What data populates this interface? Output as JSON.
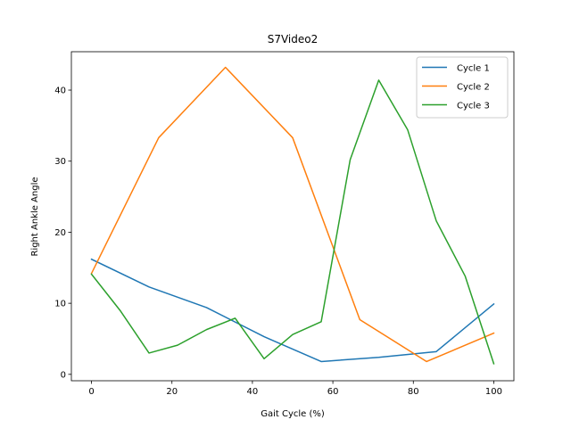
{
  "chart_data": {
    "type": "line",
    "title": "S7Video2",
    "xlabel": "Gait Cycle (%)",
    "ylabel": "Right Ankle Angle",
    "xlim": [
      -5,
      105
    ],
    "ylim": [
      -0.9,
      45.4
    ],
    "xticks": [
      0,
      20,
      40,
      60,
      80,
      100
    ],
    "yticks": [
      0,
      10,
      20,
      30,
      40
    ],
    "grid": false,
    "legend_position": "top-right",
    "series": [
      {
        "name": "Cycle 1",
        "color": "#1f77b4",
        "x": [
          0,
          14.3,
          28.6,
          42.9,
          57.1,
          71.4,
          85.7,
          100
        ],
        "y": [
          16.2,
          12.3,
          9.4,
          5.3,
          1.8,
          2.4,
          3.2,
          9.9
        ]
      },
      {
        "name": "Cycle 2",
        "color": "#ff7f0e",
        "x": [
          0,
          16.7,
          33.3,
          50,
          66.7,
          83.3,
          100
        ],
        "y": [
          14.2,
          33.3,
          43.2,
          33.3,
          7.7,
          1.8,
          5.8
        ]
      },
      {
        "name": "Cycle 3",
        "color": "#2ca02c",
        "x": [
          0,
          7.1,
          14.3,
          21.4,
          28.6,
          35.7,
          42.9,
          50,
          57.1,
          64.3,
          71.4,
          78.6,
          85.7,
          92.9,
          100
        ],
        "y": [
          14.1,
          9.0,
          3.0,
          4.1,
          6.3,
          7.9,
          2.2,
          5.6,
          7.4,
          30.2,
          41.4,
          34.4,
          21.6,
          13.8,
          1.5
        ]
      }
    ]
  }
}
